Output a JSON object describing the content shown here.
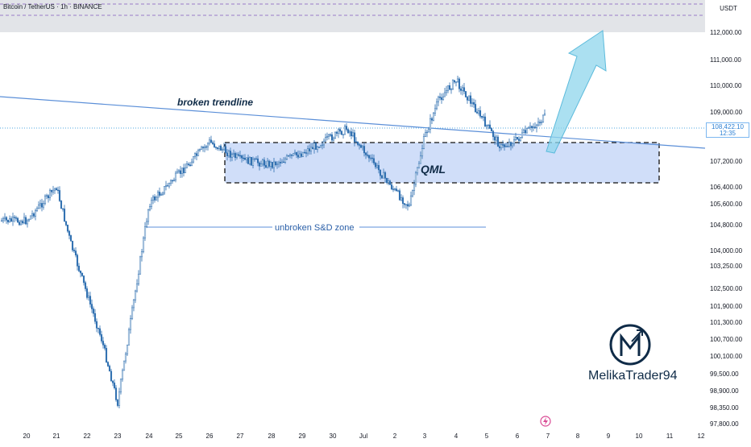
{
  "header": {
    "symbol": "Bitcoin / TetherUS · 1h · BINANCE"
  },
  "price_axis": {
    "unit": "USDT",
    "labels": [
      "112,000.00",
      "111,000.00",
      "110,000.00",
      "109,000.00",
      "107,200.00",
      "106,400.00",
      "105,600.00",
      "104,800.00",
      "104,000.00",
      "103,250.00",
      "102,500.00",
      "101,900.00",
      "101,300.00",
      "100,700.00",
      "100,100.00",
      "99,500.00",
      "98,900.00",
      "98,350.00",
      "97,800.00"
    ],
    "current_price": "108,422.10",
    "countdown": "12:35"
  },
  "time_axis": {
    "labels": [
      "20",
      "21",
      "22",
      "23",
      "24",
      "25",
      "26",
      "27",
      "28",
      "29",
      "30",
      "Jul",
      "2",
      "3",
      "4",
      "5",
      "6",
      "7",
      "8",
      "9",
      "10",
      "11",
      "12"
    ]
  },
  "annotations": {
    "trendline_label": "broken trendline",
    "zone_label": "QML",
    "sd_label": "unbroken S&D zone"
  },
  "branding": {
    "name": "MelikaTrader94"
  },
  "colors": {
    "up": "#2962ff",
    "candle": "#2f6fb0",
    "zone_fill": "#c8d8f8",
    "arrow": "#8fd6ec",
    "trendline": "#5b8fd8",
    "price_line": "#4fa7e0"
  },
  "chart_data": {
    "type": "candlestick",
    "symbol": "BTCUSDT",
    "timeframe": "1h",
    "x_ticks": [
      "20",
      "21",
      "22",
      "23",
      "24",
      "25",
      "26",
      "27",
      "28",
      "29",
      "30",
      "Jul",
      "2",
      "3",
      "4",
      "5",
      "6",
      "7",
      "8",
      "9",
      "10",
      "11",
      "12"
    ],
    "y_ticks": [
      112000,
      111000,
      110000,
      109000,
      107200,
      106400,
      105600,
      104800,
      104000,
      103250,
      102500,
      101900,
      101300,
      100700,
      100100,
      99500,
      98900,
      98350,
      97800
    ],
    "current_price": 108422.1,
    "approx_close_path": [
      {
        "x": "20",
        "y": 104950
      },
      {
        "x": "21",
        "y": 106400
      },
      {
        "x": "21",
        "y": 104200
      },
      {
        "x": "22",
        "y": 102300
      },
      {
        "x": "22",
        "y": 100700
      },
      {
        "x": "23",
        "y": 98500
      },
      {
        "x": "23",
        "y": 101700
      },
      {
        "x": "24",
        "y": 105600
      },
      {
        "x": "25",
        "y": 106800
      },
      {
        "x": "26",
        "y": 107900
      },
      {
        "x": "27",
        "y": 107250
      },
      {
        "x": "28",
        "y": 107100
      },
      {
        "x": "29",
        "y": 107500
      },
      {
        "x": "30",
        "y": 108100
      },
      {
        "x": "30",
        "y": 108400
      },
      {
        "x": "Jul",
        "y": 107600
      },
      {
        "x": "2",
        "y": 106200
      },
      {
        "x": "2",
        "y": 105500
      },
      {
        "x": "3",
        "y": 108100
      },
      {
        "x": "3",
        "y": 109500
      },
      {
        "x": "4",
        "y": 110200
      },
      {
        "x": "4",
        "y": 109400
      },
      {
        "x": "5",
        "y": 108500
      },
      {
        "x": "5",
        "y": 107700
      },
      {
        "x": "6",
        "y": 108000
      },
      {
        "x": "7",
        "y": 108900
      },
      {
        "x": "7",
        "y": 108422
      }
    ],
    "qml_zone": {
      "from": "26",
      "to": "11",
      "top": 107800,
      "bottom": 106350
    },
    "sd_zone_level": 105100
  }
}
